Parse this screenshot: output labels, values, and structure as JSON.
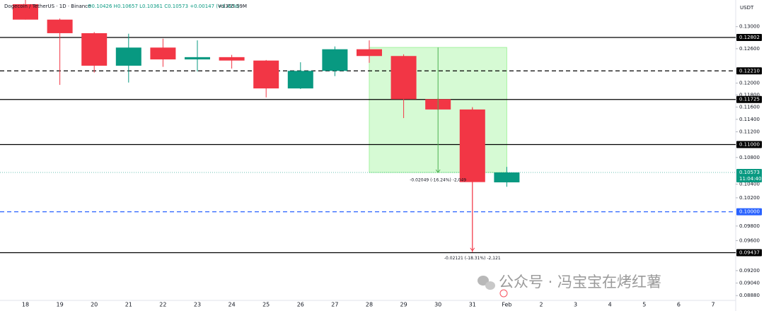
{
  "chart_data": {
    "type": "candlestick",
    "title": "Dogecoin / TetherUS · 1D · Binance",
    "ohlc_summary": "O0.10426 H0.10657 L0.10361 C0.10573 +0.00147 (+1.41%)",
    "volume": "Vol355.59M",
    "y_unit": "USDT",
    "log_scale": true,
    "grid": false,
    "categories": [
      "18",
      "19",
      "20",
      "21",
      "22",
      "23",
      "24",
      "25",
      "26",
      "27",
      "28",
      "29",
      "30",
      "31",
      "Feb",
      "2",
      "3",
      "4",
      "5",
      "6",
      "7"
    ],
    "open": [
      0.1342,
      0.1313,
      0.1288,
      0.123,
      0.1262,
      0.1241,
      0.1245,
      0.1239,
      0.1191,
      0.1221,
      0.1259,
      0.1247,
      0.1173,
      0.1156,
      0.10426,
      null,
      null,
      null,
      null,
      null,
      null
    ],
    "high": [
      0.135,
      0.1315,
      0.129,
      0.1287,
      0.1278,
      0.1275,
      0.1249,
      0.124,
      0.1236,
      0.1264,
      0.1275,
      0.125,
      0.1175,
      0.116,
      0.10657,
      null,
      null,
      null,
      null,
      null,
      null
    ],
    "low": [
      0.1313,
      0.1197,
      0.1218,
      0.1201,
      0.1228,
      0.122,
      0.1225,
      0.1176,
      0.119,
      0.1212,
      0.1235,
      0.1142,
      0.1155,
      0.0944,
      0.10361,
      null,
      null,
      null,
      null,
      null,
      null
    ],
    "close": [
      0.1313,
      0.1288,
      0.123,
      0.1262,
      0.1241,
      0.1245,
      0.1239,
      0.1191,
      0.1221,
      0.1259,
      0.1247,
      0.1173,
      0.1156,
      0.1043,
      0.10573,
      null,
      null,
      null,
      null,
      null,
      null
    ],
    "up_color": "#089981",
    "down_color": "#f23645",
    "ylim": [
      0.0882,
      0.135
    ],
    "yticks": [
      {
        "value": 0.13,
        "label": "0.13000"
      },
      {
        "value": 0.126,
        "label": "0.12600"
      },
      {
        "value": 0.12,
        "label": "0.12000"
      },
      {
        "value": 0.118,
        "label": "0.11800"
      },
      {
        "value": 0.116,
        "label": "0.11600"
      },
      {
        "value": 0.114,
        "label": "0.11400"
      },
      {
        "value": 0.112,
        "label": "0.11200"
      },
      {
        "value": 0.108,
        "label": "0.10800"
      },
      {
        "value": 0.104,
        "label": "0.10400"
      },
      {
        "value": 0.102,
        "label": "0.10200"
      },
      {
        "value": 0.098,
        "label": "0.09800"
      },
      {
        "value": 0.096,
        "label": "0.09600"
      },
      {
        "value": 0.092,
        "label": "0.09200"
      },
      {
        "value": 0.0904,
        "label": "0.09040"
      },
      {
        "value": 0.0888,
        "label": "0.08880"
      }
    ],
    "levels": [
      {
        "value": 0.12802,
        "label": "0.12802",
        "style": "solid",
        "color": "#000000"
      },
      {
        "value": 0.1221,
        "label": "0.12210",
        "style": "dashed",
        "color": "#000000"
      },
      {
        "value": 0.11725,
        "label": "0.11725",
        "style": "solid",
        "color": "#000000"
      },
      {
        "value": 0.11,
        "label": "0.11000",
        "style": "solid",
        "color": "#000000"
      },
      {
        "value": 0.1,
        "label": "0.10000",
        "style": "dashed",
        "color": "#2962ff"
      },
      {
        "value": 0.09437,
        "label": "0.09437",
        "style": "solid",
        "color": "#000000"
      }
    ],
    "last_price": {
      "value": 0.10573,
      "label": "0.10573",
      "countdown": "11:04:40",
      "color": "#089981"
    },
    "range_box": {
      "x_start": "28",
      "x_end": "Feb",
      "top": 0.12622,
      "bottom": 0.10573,
      "color": "#a5f3a0"
    },
    "annotations": [
      {
        "text": "-0.02049 (-16.24%) -2,049",
        "x": "30",
        "from": 0.12622,
        "to": 0.10573,
        "color": "#4caf50"
      },
      {
        "text": "-0.02121 (-18.31%) -2,121",
        "x": "31",
        "from": 0.11584,
        "to": 0.09463,
        "color": "#f23645"
      }
    ],
    "watermark": "公众号 · 冯宝宝在烤红薯"
  }
}
